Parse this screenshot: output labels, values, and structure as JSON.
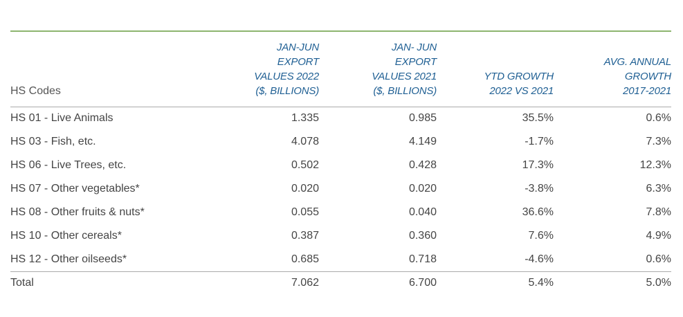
{
  "table": {
    "header": [
      [
        "HS Codes"
      ],
      [
        "JAN-JUN",
        "EXPORT",
        "VALUES 2022",
        "($, BILLIONS)"
      ],
      [
        "JAN- JUN",
        "EXPORT",
        "VALUES 2021",
        "($, BILLIONS)"
      ],
      [
        "YTD GROWTH",
        "2022 VS 2021"
      ],
      [
        "AVG. ANNUAL",
        "GROWTH",
        "2017-2021"
      ]
    ],
    "rows": [
      [
        "HS 01 - Live Animals",
        "1.335",
        "0.985",
        "35.5%",
        "0.6%"
      ],
      [
        "HS 03 - Fish, etc.",
        "4.078",
        "4.149",
        "-1.7%",
        "7.3%"
      ],
      [
        "HS 06 - Live Trees, etc.",
        "0.502",
        "0.428",
        "17.3%",
        "12.3%"
      ],
      [
        "HS 07 - Other vegetables*",
        "0.020",
        "0.020",
        "-3.8%",
        "6.3%"
      ],
      [
        "HS 08 - Other fruits & nuts*",
        "0.055",
        "0.040",
        "36.6%",
        "7.8%"
      ],
      [
        "HS 10 - Other cereals*",
        "0.387",
        "0.360",
        "7.6%",
        "4.9%"
      ],
      [
        "HS 12 - Other oilseeds*",
        "0.685",
        "0.718",
        "-4.6%",
        "0.6%"
      ]
    ],
    "total": [
      "Total",
      "7.062",
      "6.700",
      "5.4%",
      "5.0%"
    ]
  }
}
